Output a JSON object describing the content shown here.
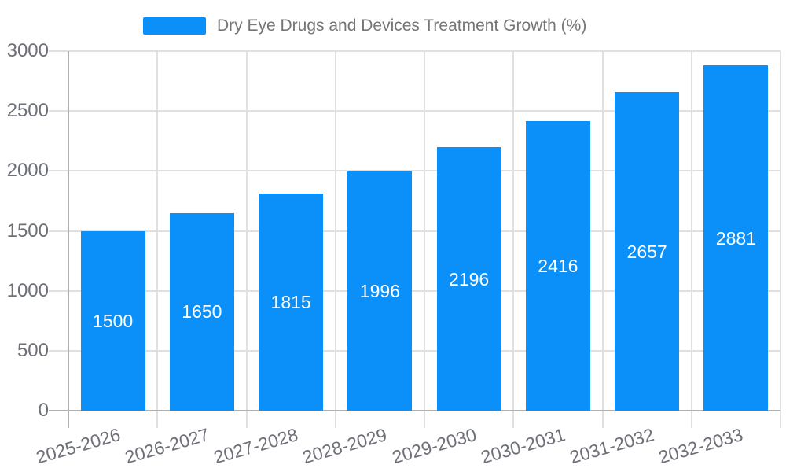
{
  "legend": {
    "label": "Dry Eye Drugs and Devices Treatment Growth (%)"
  },
  "colors": {
    "bar": "#0a90f8",
    "grid": "#e0e0e0",
    "axis": "#b0b0b0",
    "tick_text": "#6e7079",
    "legend_text": "#757575",
    "bar_label_text": "#ffffff",
    "background": "#ffffff"
  },
  "chart_data": {
    "type": "bar",
    "title": "Dry Eye Drugs and Devices Treatment Growth (%)",
    "categories": [
      "2025-2026",
      "2026-2027",
      "2027-2028",
      "2028-2029",
      "2029-2030",
      "2030-2031",
      "2031-2032",
      "2032-2033"
    ],
    "values": [
      1500,
      1650,
      1815,
      1996,
      2196,
      2416,
      2657,
      2881
    ],
    "xlabel": "",
    "ylabel": "",
    "ylim": [
      0,
      3000
    ],
    "yticks": [
      0,
      500,
      1000,
      1500,
      2000,
      2500,
      3000
    ],
    "grid": true,
    "gridlines": "horizontal-and-category-boundaries",
    "legend_position": "top",
    "bar_labels": "inside-center",
    "x_tick_label_rotation_deg": -16
  }
}
